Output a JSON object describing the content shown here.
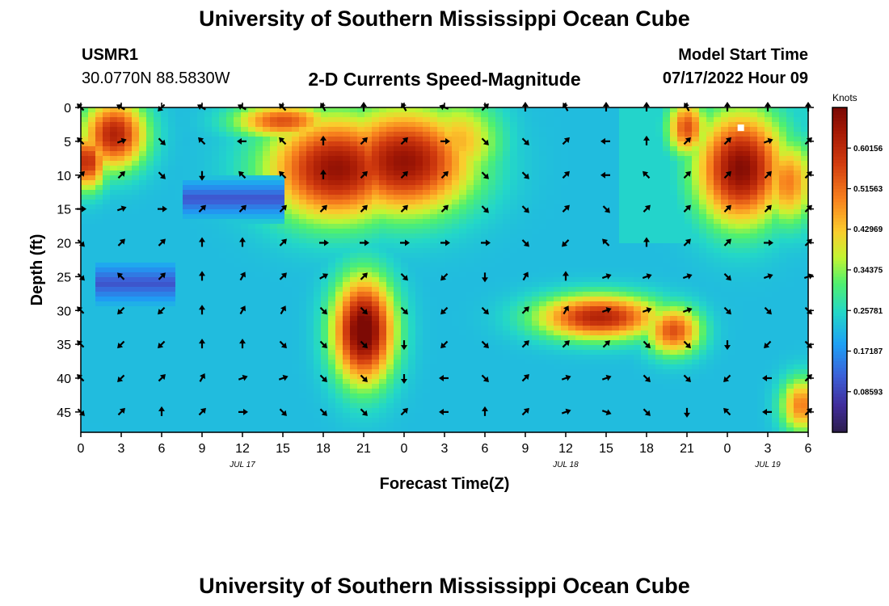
{
  "header": {
    "title": "University of Southern Mississippi Ocean Cube",
    "station_id": "USMR1",
    "coords": "30.0770N  88.5830W",
    "subtitle": "2-D Currents Speed-Magnitude",
    "model_label": "Model Start Time",
    "model_time": "07/17/2022 Hour 09"
  },
  "footer": {
    "title": "University of Southern Mississippi Ocean Cube"
  },
  "chart_data": {
    "type": "heatmap",
    "title": "2-D Currents Speed-Magnitude",
    "xlabel": "Forecast Time(Z)",
    "ylabel": "Depth (ft)",
    "xlim": [
      0,
      54
    ],
    "ylim": [
      0,
      48
    ],
    "x_ticks": [
      "0",
      "3",
      "6",
      "9",
      "12",
      "15",
      "18",
      "21",
      "0",
      "3",
      "6",
      "9",
      "12",
      "15",
      "18",
      "21",
      "0",
      "3",
      "6"
    ],
    "x_tick_values": [
      0,
      3,
      6,
      9,
      12,
      15,
      18,
      21,
      24,
      27,
      30,
      33,
      36,
      39,
      42,
      45,
      48,
      51,
      54
    ],
    "date_labels": [
      {
        "x": 12,
        "label": "JUL 17"
      },
      {
        "x": 36,
        "label": "JUL 18"
      },
      {
        "x": 51,
        "label": "JUL 19"
      }
    ],
    "y_ticks": [
      "0",
      "5",
      "10",
      "15",
      "20",
      "25",
      "30",
      "35",
      "40",
      "45"
    ],
    "y_tick_values": [
      0,
      5,
      10,
      15,
      20,
      25,
      30,
      35,
      40,
      45
    ],
    "colorbar": {
      "unit": "Knots",
      "range": [
        0,
        0.6875
      ],
      "labels": [
        "0.60156",
        "0.51563",
        "0.42969",
        "0.34375",
        "0.25781",
        "0.17187",
        "0.08593"
      ],
      "values": [
        0.60156,
        0.51563,
        0.42969,
        0.34375,
        0.25781,
        0.17187,
        0.08593
      ]
    },
    "speed_blobs": [
      {
        "x": 2.5,
        "y": 4,
        "sx": 2.3,
        "sy": 5,
        "v": 0.62
      },
      {
        "x": 0.5,
        "y": 8,
        "sx": 1.4,
        "sy": 4,
        "v": 0.6
      },
      {
        "x": 15,
        "y": 2,
        "sx": 3.5,
        "sy": 2.5,
        "v": 0.55
      },
      {
        "x": 19,
        "y": 9,
        "sx": 5,
        "sy": 7.5,
        "v": 0.66
      },
      {
        "x": 24,
        "y": 8,
        "sx": 5,
        "sy": 7.5,
        "v": 0.66
      },
      {
        "x": 28,
        "y": 5,
        "sx": 3,
        "sy": 6,
        "v": 0.45
      },
      {
        "x": 45,
        "y": 3,
        "sx": 1.4,
        "sy": 4,
        "v": 0.55
      },
      {
        "x": 49,
        "y": 9,
        "sx": 3.2,
        "sy": 8,
        "v": 0.68
      },
      {
        "x": 52.5,
        "y": 11,
        "sx": 2,
        "sy": 6,
        "v": 0.5
      },
      {
        "x": 21,
        "y": 33,
        "sx": 2.2,
        "sy": 7.5,
        "v": 0.72
      },
      {
        "x": 38.5,
        "y": 31,
        "sx": 4.5,
        "sy": 3.2,
        "v": 0.62
      },
      {
        "x": 44,
        "y": 33,
        "sx": 2,
        "sy": 3.5,
        "v": 0.55
      },
      {
        "x": 12,
        "y": 27,
        "sx": 1.8,
        "sy": 3,
        "v": 0.2
      },
      {
        "x": 53.5,
        "y": 44,
        "sx": 1.5,
        "sy": 4,
        "v": 0.5
      }
    ],
    "vectors_x": [
      0,
      3,
      6,
      9,
      12,
      15,
      18,
      21,
      24,
      27,
      30,
      33,
      36,
      39,
      42,
      45,
      48,
      51,
      54
    ],
    "vectors_y": [
      0,
      5,
      10,
      15,
      20,
      25,
      30,
      35,
      40,
      45
    ],
    "vector_angles_deg": [
      [
        -135,
        -150,
        135,
        -150,
        -150,
        -135,
        -120,
        -90,
        -120,
        -160,
        -45,
        -90,
        -120,
        -90,
        -90,
        -120,
        -90,
        -90,
        -90
      ],
      [
        -135,
        -20,
        45,
        -135,
        180,
        -135,
        -90,
        -45,
        -45,
        0,
        45,
        45,
        -45,
        180,
        -90,
        -45,
        -45,
        -20,
        -45
      ],
      [
        -45,
        -45,
        45,
        90,
        -135,
        -135,
        -90,
        -45,
        -45,
        -45,
        45,
        45,
        -45,
        180,
        -135,
        -45,
        -45,
        -45,
        -45
      ],
      [
        0,
        -20,
        0,
        -45,
        -45,
        -45,
        -45,
        -45,
        -45,
        -45,
        45,
        45,
        -45,
        45,
        -45,
        -45,
        -45,
        -45,
        -45
      ],
      [
        45,
        -45,
        -45,
        -90,
        -90,
        -45,
        0,
        0,
        0,
        0,
        0,
        45,
        135,
        -135,
        -90,
        -45,
        -45,
        0,
        -45
      ],
      [
        45,
        -135,
        -45,
        -90,
        -60,
        -45,
        -30,
        -45,
        45,
        135,
        90,
        -60,
        -90,
        -20,
        -20,
        -20,
        45,
        -20,
        -20
      ],
      [
        -135,
        135,
        135,
        -90,
        -60,
        -60,
        45,
        45,
        45,
        135,
        45,
        -45,
        -60,
        -20,
        -20,
        -20,
        45,
        45,
        45
      ],
      [
        -135,
        135,
        135,
        -90,
        -90,
        45,
        45,
        45,
        90,
        135,
        45,
        -45,
        -45,
        -45,
        45,
        45,
        90,
        135,
        45
      ],
      [
        -135,
        135,
        -45,
        -60,
        -20,
        -20,
        45,
        45,
        90,
        180,
        45,
        -45,
        -20,
        -20,
        45,
        45,
        135,
        180,
        -45
      ],
      [
        45,
        -45,
        -90,
        -45,
        0,
        45,
        45,
        45,
        -45,
        180,
        -90,
        -45,
        -20,
        20,
        45,
        90,
        -135,
        180,
        -45
      ]
    ],
    "marker": {
      "x": 49,
      "y": 3,
      "color": "#ffffff"
    }
  }
}
